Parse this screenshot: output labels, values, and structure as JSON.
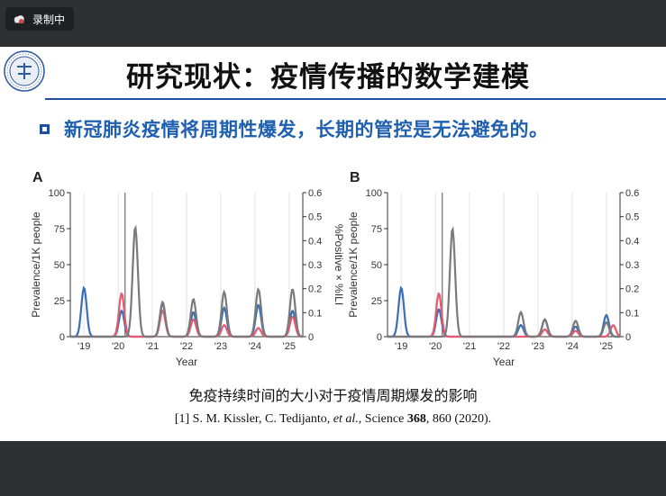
{
  "recorder": {
    "label": "录制中",
    "icon": "cloud-icon"
  },
  "slide": {
    "title": "研究现状：疫情传播的数学建模",
    "bullet": "新冠肺炎疫情将周期性爆发，长期的管控是无法避免的。",
    "caption": "免疫持续时间的大小对于疫情周期爆发的影响",
    "reference": {
      "prefix": "[1] S. M. Kissler, C. Tedijanto, ",
      "etal": "et al.",
      "journal": ", Science ",
      "volume": "368",
      "suffix": ", 860 (2020)."
    },
    "logo": "university-seal-icon",
    "accent_color": "#1f4e9c",
    "bullet_color": "#1f5fb0"
  },
  "chart_data": [
    {
      "type": "line",
      "panel_label": "A",
      "xlabel": "Year",
      "ylabel": "Prevalence/1K people",
      "y2label": "%Positive × %ILI",
      "x_ticks": [
        "'19",
        "'20",
        "'21",
        "'22",
        "'23",
        "'24",
        "'25"
      ],
      "ylim": [
        0,
        100
      ],
      "y_ticks": [
        "0",
        "25",
        "50",
        "75",
        "100"
      ],
      "y2lim": [
        0,
        0.6
      ],
      "y2_ticks": [
        "0",
        "0.1",
        "0.2",
        "0.3",
        "0.4",
        "0.5",
        "0.6"
      ],
      "vertical_marker_year": 2020.2,
      "series": [
        {
          "color": "#3a6fb5",
          "peaks": [
            [
              2019.0,
              34
            ],
            [
              2020.1,
              18
            ],
            [
              2021.3,
              23
            ],
            [
              2022.2,
              17
            ],
            [
              2023.1,
              20
            ],
            [
              2024.1,
              22
            ],
            [
              2025.1,
              18
            ]
          ]
        },
        {
          "color": "#e8596f",
          "peaks": [
            [
              2020.1,
              30
            ],
            [
              2021.3,
              18
            ],
            [
              2022.2,
              12
            ],
            [
              2023.1,
              8
            ],
            [
              2024.1,
              6
            ],
            [
              2025.1,
              14
            ]
          ]
        },
        {
          "color": "#7a7a7a",
          "peaks": [
            [
              2020.5,
              76
            ],
            [
              2021.3,
              24
            ],
            [
              2022.2,
              26
            ],
            [
              2023.1,
              31
            ],
            [
              2024.1,
              33
            ],
            [
              2025.1,
              33
            ]
          ]
        }
      ]
    },
    {
      "type": "line",
      "panel_label": "B",
      "xlabel": "Year",
      "ylabel": "Prevalence/1K people",
      "y2label": "%Positive × %ILI",
      "x_ticks": [
        "'19",
        "'20",
        "'21",
        "'22",
        "'23",
        "'24",
        "'25"
      ],
      "ylim": [
        0,
        100
      ],
      "y_ticks": [
        "0",
        "25",
        "50",
        "75",
        "100"
      ],
      "y2lim": [
        0,
        0.6
      ],
      "y2_ticks": [
        "0",
        "0.1",
        "0.2",
        "0.3",
        "0.4",
        "0.5",
        "0.6"
      ],
      "vertical_marker_year": 2020.2,
      "series": [
        {
          "color": "#3a6fb5",
          "peaks": [
            [
              2019.0,
              34
            ],
            [
              2020.1,
              19
            ],
            [
              2022.5,
              8
            ],
            [
              2023.2,
              12
            ],
            [
              2024.1,
              7
            ],
            [
              2025.0,
              15
            ]
          ]
        },
        {
          "color": "#e8596f",
          "peaks": [
            [
              2020.1,
              30
            ],
            [
              2023.2,
              5
            ],
            [
              2024.1,
              4
            ],
            [
              2025.2,
              8
            ]
          ]
        },
        {
          "color": "#7a7a7a",
          "peaks": [
            [
              2020.5,
              75
            ],
            [
              2022.5,
              17
            ],
            [
              2023.2,
              12
            ],
            [
              2024.1,
              11
            ],
            [
              2025.0,
              10
            ]
          ]
        }
      ]
    }
  ]
}
